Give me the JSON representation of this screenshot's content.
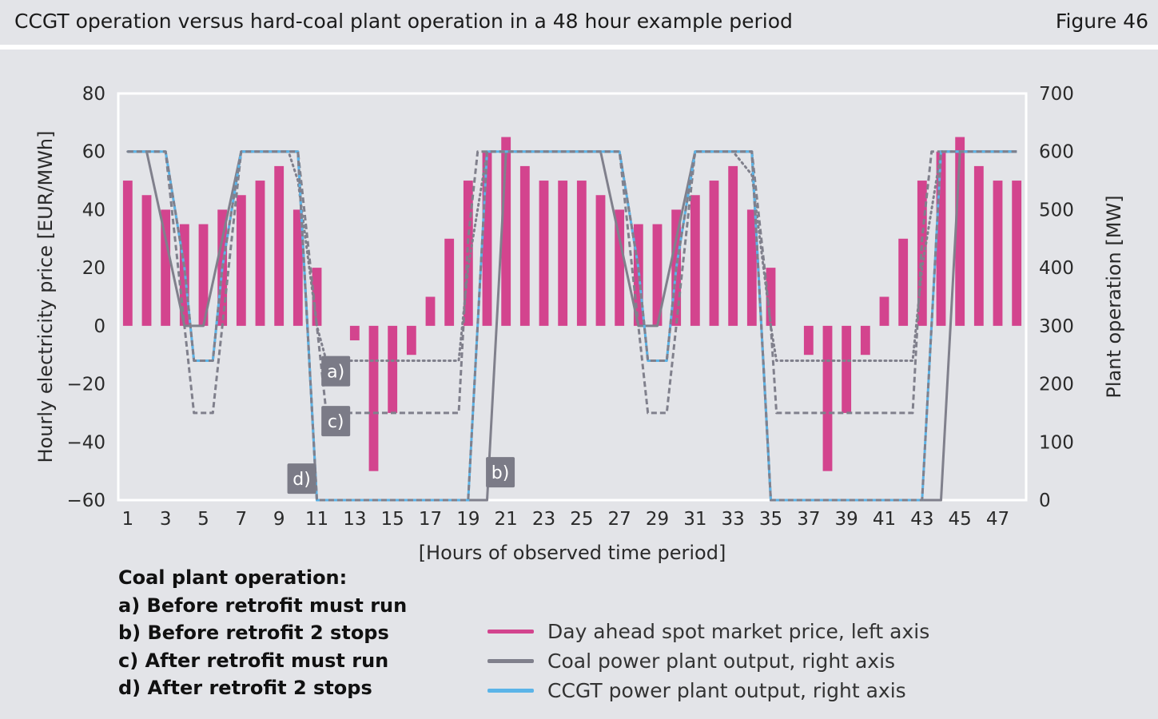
{
  "header": {
    "title": "CCGT operation versus hard-coal plant operation in a 48 hour example period",
    "figure_label": "Figure 46"
  },
  "colors": {
    "price": "#d3448e",
    "coal": "#80808c",
    "ccgt": "#5bb4e8",
    "tag_bg": "#7b7b87",
    "background": "#e3e4e8"
  },
  "chart_data": {
    "type": "bar+line",
    "xlabel": "[Hours of observed time period]",
    "ylabel_left": "Hourly electricity price [EUR/MWh]",
    "ylabel_right": "Plant operation [MW]",
    "ylim_left": [
      -60,
      80
    ],
    "ylim_right": [
      0,
      700
    ],
    "yticks_left": [
      "80",
      "60",
      "40",
      "20",
      "0",
      "−20",
      "−40",
      "−60"
    ],
    "yticks_right": [
      "700",
      "600",
      "500",
      "400",
      "300",
      "200",
      "100",
      "0"
    ],
    "xticks": [
      "1",
      "3",
      "5",
      "7",
      "9",
      "11",
      "13",
      "15",
      "17",
      "19",
      "21",
      "23",
      "25",
      "27",
      "29",
      "31",
      "33",
      "35",
      "37",
      "39",
      "41",
      "43",
      "45",
      "47"
    ],
    "hours": [
      1,
      2,
      3,
      4,
      5,
      6,
      7,
      8,
      9,
      10,
      11,
      12,
      13,
      14,
      15,
      16,
      17,
      18,
      19,
      20,
      21,
      22,
      23,
      24,
      25,
      26,
      27,
      28,
      29,
      30,
      31,
      32,
      33,
      34,
      35,
      36,
      37,
      38,
      39,
      40,
      41,
      42,
      43,
      44,
      45,
      46,
      47,
      48
    ],
    "grid": false,
    "legend_position": "bottom-right",
    "series": [
      {
        "name": "Day ahead spot market price, left axis",
        "type": "bar",
        "axis": "left",
        "values": [
          50,
          45,
          40,
          35,
          35,
          40,
          45,
          50,
          55,
          40,
          20,
          0,
          -5,
          -50,
          -30,
          -10,
          10,
          30,
          50,
          60,
          65,
          55,
          50,
          50,
          50,
          45,
          40,
          35,
          35,
          40,
          45,
          50,
          55,
          40,
          20,
          0,
          -10,
          -50,
          -30,
          -10,
          10,
          30,
          50,
          60,
          65,
          55,
          50,
          50
        ]
      },
      {
        "name": "a) Before retrofit must run",
        "type": "line",
        "style": "dotted",
        "axis": "right",
        "points": [
          [
            1,
            600
          ],
          [
            3,
            600
          ],
          [
            4,
            400
          ],
          [
            4.5,
            240
          ],
          [
            5.5,
            240
          ],
          [
            6,
            400
          ],
          [
            7,
            600
          ],
          [
            9.5,
            600
          ],
          [
            10,
            550
          ],
          [
            11,
            300
          ],
          [
            11.5,
            240
          ],
          [
            18.5,
            240
          ],
          [
            19,
            400
          ],
          [
            20,
            600
          ],
          [
            27,
            600
          ],
          [
            28,
            400
          ],
          [
            28.5,
            240
          ],
          [
            29.5,
            240
          ],
          [
            30,
            400
          ],
          [
            31,
            600
          ],
          [
            33,
            600
          ],
          [
            34,
            560
          ],
          [
            35,
            300
          ],
          [
            35.3,
            240
          ],
          [
            42.5,
            240
          ],
          [
            43,
            400
          ],
          [
            44,
            600
          ],
          [
            48,
            600
          ]
        ]
      },
      {
        "name": "b) Before retrofit 2 stops",
        "type": "line",
        "style": "solid",
        "axis": "right",
        "points": [
          [
            1,
            600
          ],
          [
            2,
            600
          ],
          [
            3,
            450
          ],
          [
            4,
            300
          ],
          [
            5,
            300
          ],
          [
            6,
            450
          ],
          [
            7,
            600
          ],
          [
            10,
            600
          ],
          [
            11,
            0
          ],
          [
            20,
            0
          ],
          [
            21,
            600
          ],
          [
            26,
            600
          ],
          [
            27,
            450
          ],
          [
            28,
            300
          ],
          [
            29,
            300
          ],
          [
            30,
            450
          ],
          [
            31,
            600
          ],
          [
            34,
            600
          ],
          [
            35,
            0
          ],
          [
            44,
            0
          ],
          [
            45,
            600
          ],
          [
            48,
            600
          ]
        ]
      },
      {
        "name": "c) After retrofit must run",
        "type": "line",
        "style": "dashed",
        "axis": "right",
        "points": [
          [
            1,
            600
          ],
          [
            3,
            600
          ],
          [
            4,
            300
          ],
          [
            4.5,
            150
          ],
          [
            5.5,
            150
          ],
          [
            6,
            300
          ],
          [
            7,
            600
          ],
          [
            10,
            600
          ],
          [
            11,
            300
          ],
          [
            11.5,
            150
          ],
          [
            18.5,
            150
          ],
          [
            19,
            450
          ],
          [
            19.5,
            600
          ],
          [
            27,
            600
          ],
          [
            28,
            300
          ],
          [
            28.5,
            150
          ],
          [
            29.5,
            150
          ],
          [
            30,
            300
          ],
          [
            31,
            600
          ],
          [
            34,
            600
          ],
          [
            35,
            300
          ],
          [
            35.3,
            150
          ],
          [
            42.5,
            150
          ],
          [
            43,
            450
          ],
          [
            43.5,
            600
          ],
          [
            48,
            600
          ]
        ]
      },
      {
        "name": "d) After retrofit 2 stops",
        "type": "line",
        "style": "dashed",
        "axis": "right",
        "points": [
          [
            1,
            600
          ],
          [
            3,
            600
          ],
          [
            4,
            400
          ],
          [
            4.5,
            240
          ],
          [
            5.5,
            240
          ],
          [
            6,
            400
          ],
          [
            7,
            600
          ],
          [
            10,
            600
          ],
          [
            11,
            0
          ],
          [
            19,
            0
          ],
          [
            20,
            600
          ],
          [
            27,
            600
          ],
          [
            28,
            400
          ],
          [
            28.5,
            240
          ],
          [
            29.5,
            240
          ],
          [
            30,
            400
          ],
          [
            31,
            600
          ],
          [
            34,
            600
          ],
          [
            35,
            0
          ],
          [
            43,
            0
          ],
          [
            44,
            600
          ],
          [
            48,
            600
          ]
        ]
      },
      {
        "name": "CCGT power plant output, right axis",
        "type": "line",
        "style": "solid",
        "axis": "right",
        "points": [
          [
            1,
            600
          ],
          [
            3,
            600
          ],
          [
            4,
            400
          ],
          [
            4.5,
            240
          ],
          [
            5.5,
            240
          ],
          [
            6,
            400
          ],
          [
            7,
            600
          ],
          [
            10,
            600
          ],
          [
            11,
            0
          ],
          [
            19,
            0
          ],
          [
            20,
            600
          ],
          [
            27,
            600
          ],
          [
            28,
            400
          ],
          [
            28.5,
            240
          ],
          [
            29.5,
            240
          ],
          [
            30,
            400
          ],
          [
            31,
            600
          ],
          [
            34,
            600
          ],
          [
            35,
            0
          ],
          [
            43,
            0
          ],
          [
            44,
            600
          ],
          [
            48,
            600
          ]
        ]
      }
    ],
    "annotations": [
      {
        "text": "a)",
        "hour": 12,
        "mw": 222
      },
      {
        "text": "c)",
        "hour": 12,
        "mw": 136
      },
      {
        "text": "d)",
        "hour": 10.2,
        "mw": 37
      },
      {
        "text": "b)",
        "hour": 20.7,
        "mw": 48
      }
    ]
  },
  "notes": {
    "title": "Coal plant operation:",
    "items": [
      "a) Before retrofit must run",
      "b) Before retrofit 2 stops",
      "c) After retrofit must run",
      "d) After retrofit 2 stops"
    ]
  },
  "legend": {
    "items": [
      {
        "label": "Day ahead spot market price, left axis",
        "color": "#d3448e"
      },
      {
        "label": "Coal power plant output, right axis",
        "color": "#80808c"
      },
      {
        "label": "CCGT power plant output, right axis",
        "color": "#5bb4e8"
      }
    ]
  }
}
